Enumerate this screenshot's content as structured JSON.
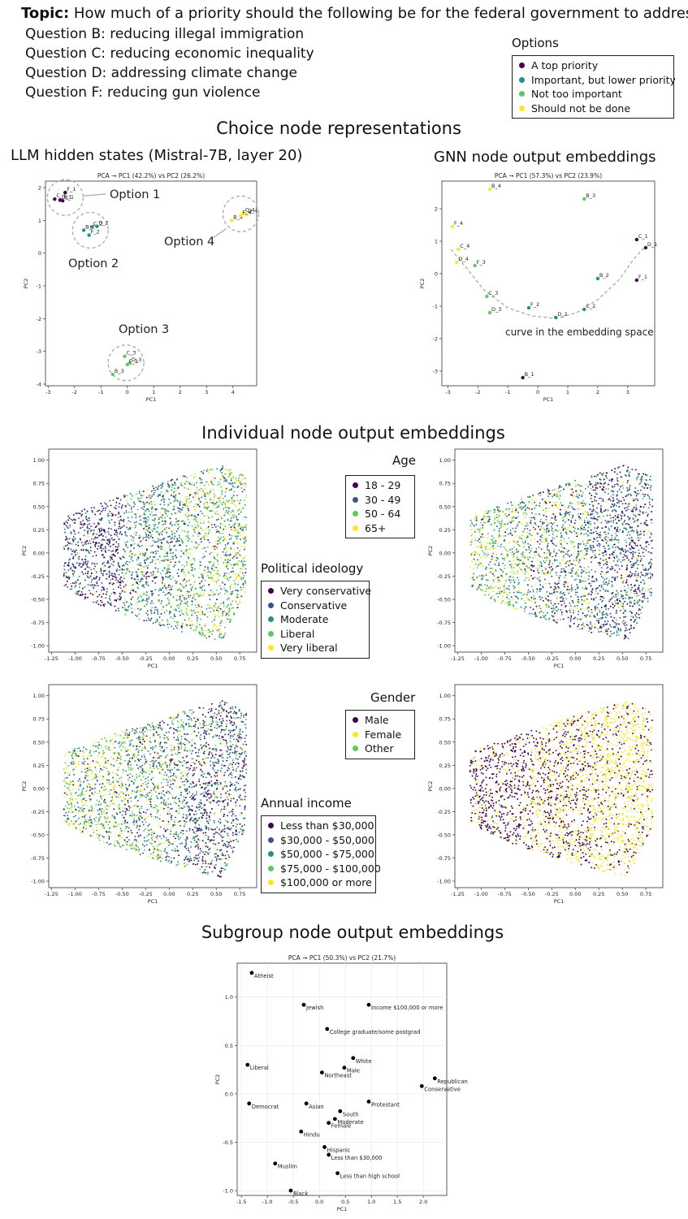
{
  "header": {
    "topic_label": "Topic:",
    "topic_text": "How much of a priority should the following be for the federal government to address…",
    "questions": [
      "Question B: reducing illegal immigration",
      "Question C: reducing economic inequality",
      "Question D: addressing climate change",
      "Question F: reducing gun violence"
    ]
  },
  "options_legend": {
    "title": "Options",
    "items": [
      {
        "label": "A top priority",
        "color": "#440154"
      },
      {
        "label": "Important, but lower priority",
        "color": "#21918c"
      },
      {
        "label": "Not too important",
        "color": "#5ec962"
      },
      {
        "label": "Should not be done",
        "color": "#fde725"
      }
    ]
  },
  "sections": {
    "choice": "Choice node representations",
    "individual": "Individual node output embeddings",
    "subgroup": "Subgroup node output embeddings"
  },
  "panel_titles": {
    "llm": "LLM hidden states (Mistral-7B, layer 20)",
    "gnn": "GNN node output embeddings"
  },
  "annotations": {
    "option1": "Option 1",
    "option2": "Option 2",
    "option3": "Option 3",
    "option4": "Option 4",
    "curve": "curve in the embedding space"
  },
  "legends": {
    "age": {
      "title": "Age",
      "items": [
        {
          "label": "18 - 29",
          "color": "#440154"
        },
        {
          "label": "30 - 49",
          "color": "#3b528b"
        },
        {
          "label": "50 - 64",
          "color": "#5ec962"
        },
        {
          "label": "65+",
          "color": "#fde725"
        }
      ]
    },
    "ideology": {
      "title": "Political ideology",
      "items": [
        {
          "label": "Very conservative",
          "color": "#440154"
        },
        {
          "label": "Conservative",
          "color": "#3b528b"
        },
        {
          "label": "Moderate",
          "color": "#21918c"
        },
        {
          "label": "Liberal",
          "color": "#5ec962"
        },
        {
          "label": "Very liberal",
          "color": "#fde725"
        }
      ]
    },
    "gender": {
      "title": "Gender",
      "items": [
        {
          "label": "Male",
          "color": "#440154"
        },
        {
          "label": "Female",
          "color": "#fde725"
        },
        {
          "label": "Other",
          "color": "#5ec962"
        }
      ]
    },
    "income": {
      "title": "Annual income",
      "items": [
        {
          "label": "Less than $30,000",
          "color": "#440154"
        },
        {
          "label": "$30,000 - $50,000",
          "color": "#3b528b"
        },
        {
          "label": "$50,000 - $75,000",
          "color": "#21918c"
        },
        {
          "label": "$75,000 - $100,000",
          "color": "#5ec962"
        },
        {
          "label": "$100,000 or more",
          "color": "#fde725"
        }
      ]
    }
  },
  "chart_data": [
    {
      "id": "llm",
      "type": "scatter",
      "title": "PCA → PC1 (42.2%) vs PC2 (26.2%)",
      "xlabel": "PC1",
      "ylabel": "PC2",
      "xlim": [
        -3.1,
        4.9
      ],
      "ylim": [
        -4.05,
        2.2
      ],
      "xticks": [
        -3,
        -2,
        -1,
        0,
        1,
        2,
        3,
        4
      ],
      "yticks": [
        -4,
        -3,
        -2,
        -1,
        0,
        1,
        2
      ],
      "points": [
        {
          "label": "F_1",
          "x": -2.35,
          "y": 1.85,
          "c": "#440154"
        },
        {
          "label": "C_1",
          "x": -2.75,
          "y": 1.65,
          "c": "#440154"
        },
        {
          "label": "D_1",
          "x": -2.55,
          "y": 1.62,
          "c": "#440154"
        },
        {
          "label": "B_1",
          "x": -2.45,
          "y": 1.6,
          "c": "#440154"
        },
        {
          "label": "B_2",
          "x": -1.65,
          "y": 0.7,
          "c": "#21918c"
        },
        {
          "label": "C_2",
          "x": -1.35,
          "y": 0.8,
          "c": "#21918c"
        },
        {
          "label": "D_2",
          "x": -1.15,
          "y": 0.82,
          "c": "#21918c"
        },
        {
          "label": "F_2",
          "x": -1.45,
          "y": 0.55,
          "c": "#21918c"
        },
        {
          "label": "B_4",
          "x": 3.95,
          "y": 1.0,
          "c": "#fde725"
        },
        {
          "label": "C_4",
          "x": 4.4,
          "y": 1.22,
          "c": "#fde725"
        },
        {
          "label": "D_4",
          "x": 4.5,
          "y": 1.2,
          "c": "#fde725"
        },
        {
          "label": "F_4",
          "x": 4.3,
          "y": 1.15,
          "c": "#fde725"
        },
        {
          "label": "C_3",
          "x": -0.1,
          "y": -3.15,
          "c": "#5ec962"
        },
        {
          "label": "D_3",
          "x": 0.1,
          "y": -3.35,
          "c": "#5ec962"
        },
        {
          "label": "F_3",
          "x": 0.0,
          "y": -3.4,
          "c": "#5ec962"
        },
        {
          "label": "B_3",
          "x": -0.55,
          "y": -3.7,
          "c": "#5ec962"
        }
      ]
    },
    {
      "id": "gnn",
      "type": "scatter",
      "title": "PCA → PC1 (57.3%) vs PC2 (23.9%)",
      "xlabel": "PC1",
      "ylabel": "PC2",
      "xlim": [
        -3.2,
        3.9
      ],
      "ylim": [
        -3.45,
        2.85
      ],
      "xticks": [
        -3,
        -2,
        -1,
        0,
        1,
        2,
        3
      ],
      "yticks": [
        -3,
        -2,
        -1,
        0,
        1,
        2
      ],
      "points": [
        {
          "label": "B_4",
          "x": -1.6,
          "y": 2.6,
          "c": "#fde725"
        },
        {
          "label": "B_3",
          "x": 1.55,
          "y": 2.3,
          "c": "#5ec962"
        },
        {
          "label": "F_4",
          "x": -2.85,
          "y": 1.45,
          "c": "#fde725"
        },
        {
          "label": "C_4",
          "x": -2.65,
          "y": 0.75,
          "c": "#fde725"
        },
        {
          "label": "D_4",
          "x": -2.7,
          "y": 0.35,
          "c": "#fde725"
        },
        {
          "label": "F_3",
          "x": -2.1,
          "y": 0.25,
          "c": "#5ec962"
        },
        {
          "label": "C_1",
          "x": 3.3,
          "y": 1.05,
          "c": "#440154"
        },
        {
          "label": "D_1",
          "x": 3.6,
          "y": 0.8,
          "c": "#440154"
        },
        {
          "label": "B_2",
          "x": 2.0,
          "y": -0.15,
          "c": "#21918c"
        },
        {
          "label": "F_1",
          "x": 3.3,
          "y": -0.2,
          "c": "#440154"
        },
        {
          "label": "C_3",
          "x": -1.7,
          "y": -0.7,
          "c": "#5ec962"
        },
        {
          "label": "F_2",
          "x": -0.3,
          "y": -1.05,
          "c": "#21918c"
        },
        {
          "label": "C_2",
          "x": 1.55,
          "y": -1.1,
          "c": "#21918c"
        },
        {
          "label": "D_3",
          "x": -1.6,
          "y": -1.2,
          "c": "#5ec962"
        },
        {
          "label": "D_2",
          "x": 0.6,
          "y": -1.35,
          "c": "#21918c"
        },
        {
          "label": "B_1",
          "x": -0.5,
          "y": -3.2,
          "c": "#440154"
        }
      ]
    },
    {
      "id": "indiv_age",
      "type": "scatter",
      "xlabel": "PC1",
      "ylabel": "PC2",
      "xlim": [
        -1.28,
        0.93
      ],
      "ylim": [
        -1.07,
        1.12
      ],
      "xticks": [
        -1.25,
        -1.0,
        -0.75,
        -0.5,
        -0.25,
        0.0,
        0.25,
        0.5,
        0.75
      ],
      "xticklabels": [
        "-1.25",
        "-1.00",
        "-0.75",
        "-0.50",
        "-0.25",
        "0.00",
        "0.25",
        "0.50",
        "0.75"
      ],
      "yticks": [
        -1.0,
        -0.75,
        -0.5,
        -0.25,
        0.0,
        0.25,
        0.5,
        0.75,
        1.0
      ],
      "yticklabels": [
        "-1.00",
        "-0.75",
        "-0.50",
        "-0.25",
        "0.00",
        "0.25",
        "0.50",
        "0.75",
        "1.00"
      ],
      "color_by": "age / political ideology",
      "palette": [
        "#440154",
        "#3b528b",
        "#21918c",
        "#5ec962",
        "#fde725"
      ],
      "weights": [
        [
          4,
          3,
          1,
          0.4,
          0.1
        ],
        [
          1,
          2,
          3,
          2,
          1
        ],
        [
          0.3,
          1,
          2,
          3,
          2.5
        ]
      ]
    },
    {
      "id": "indiv_ideology",
      "type": "scatter",
      "xlabel": "PC1",
      "ylabel": "PC2",
      "xlim": [
        -1.28,
        0.93
      ],
      "ylim": [
        -1.07,
        1.12
      ],
      "xticks": [
        -1.25,
        -1.0,
        -0.75,
        -0.5,
        -0.25,
        0.0,
        0.25,
        0.5,
        0.75
      ],
      "xticklabels": [
        "-1.25",
        "-1.00",
        "-0.75",
        "-0.50",
        "-0.25",
        "0.00",
        "0.25",
        "0.50",
        "0.75"
      ],
      "yticks": [
        -1.0,
        -0.75,
        -0.5,
        -0.25,
        0.0,
        0.25,
        0.5,
        0.75,
        1.0
      ],
      "yticklabels": [
        "-1.00",
        "-0.75",
        "-0.50",
        "-0.25",
        "0.00",
        "0.25",
        "0.50",
        "0.75",
        "1.00"
      ],
      "color_by": "political ideology",
      "palette": [
        "#440154",
        "#3b528b",
        "#21918c",
        "#5ec962",
        "#fde725"
      ],
      "weights": [
        [
          0.5,
          1,
          2,
          3,
          3
        ],
        [
          2,
          2,
          2,
          2,
          2
        ],
        [
          3,
          3,
          2,
          1,
          0.5
        ]
      ]
    },
    {
      "id": "indiv_income",
      "type": "scatter",
      "xlabel": "PC1",
      "ylabel": "PC2",
      "xlim": [
        -1.28,
        0.93
      ],
      "ylim": [
        -1.07,
        1.12
      ],
      "xticks": [
        -1.25,
        -1.0,
        -0.75,
        -0.5,
        -0.25,
        0.0,
        0.25,
        0.5,
        0.75
      ],
      "xticklabels": [
        "-1.25",
        "-1.00",
        "-0.75",
        "-0.50",
        "-0.25",
        "0.00",
        "0.25",
        "0.50",
        "0.75"
      ],
      "yticks": [
        -1.0,
        -0.75,
        -0.5,
        -0.25,
        0.0,
        0.25,
        0.5,
        0.75,
        1.0
      ],
      "yticklabels": [
        "-1.00",
        "-0.75",
        "-0.50",
        "-0.25",
        "0.00",
        "0.25",
        "0.50",
        "0.75",
        "1.00"
      ],
      "color_by": "annual income",
      "palette": [
        "#440154",
        "#3b528b",
        "#21918c",
        "#5ec962",
        "#fde725"
      ],
      "weights": [
        [
          0.5,
          1,
          1.5,
          2.5,
          3
        ],
        [
          1,
          2,
          2,
          2,
          1.5
        ],
        [
          3,
          3,
          2,
          1,
          0.5
        ]
      ]
    },
    {
      "id": "indiv_gender",
      "type": "scatter",
      "xlabel": "PC1",
      "ylabel": "PC2",
      "xlim": [
        -1.28,
        0.93
      ],
      "ylim": [
        -1.07,
        1.12
      ],
      "xticks": [
        -1.25,
        -1.0,
        -0.75,
        -0.5,
        -0.25,
        0.0,
        0.25,
        0.5,
        0.75
      ],
      "xticklabels": [
        "-1.25",
        "-1.00",
        "-0.75",
        "-0.50",
        "-0.25",
        "0.00",
        "0.25",
        "0.50",
        "0.75"
      ],
      "yticks": [
        -1.0,
        -0.75,
        -0.5,
        -0.25,
        0.0,
        0.25,
        0.5,
        0.75,
        1.0
      ],
      "yticklabels": [
        "-1.00",
        "-0.75",
        "-0.50",
        "-0.25",
        "0.00",
        "0.25",
        "0.50",
        "0.75",
        "1.00"
      ],
      "color_by": "gender",
      "palette": [
        "#440154",
        "#fde725",
        "#5ec962"
      ],
      "weights": [
        [
          3,
          1,
          0.05
        ],
        [
          1.5,
          1.5,
          0.05
        ],
        [
          1,
          3,
          0.05
        ]
      ]
    },
    {
      "id": "subgroup",
      "type": "scatter",
      "title": "PCA → PC1 (50.3%) vs PC2 (21.7%)",
      "xlabel": "PC1",
      "ylabel": "PC2",
      "xlim": [
        -1.58,
        2.45
      ],
      "ylim": [
        -1.05,
        1.35
      ],
      "xticks": [
        -1.5,
        -1.0,
        -0.5,
        0.0,
        0.5,
        1.0,
        1.5,
        2.0
      ],
      "xticklabels": [
        "-1.5",
        "-1.0",
        "-0.5",
        "0.0",
        "0.5",
        "1.0",
        "1.5",
        "2.0"
      ],
      "yticks": [
        -1.0,
        -0.5,
        0.0,
        0.5,
        1.0
      ],
      "yticklabels": [
        "-1.0",
        "-0.5",
        "0.0",
        "0.5",
        "1.0"
      ],
      "points": [
        {
          "label": "Atheist",
          "x": -1.3,
          "y": 1.25
        },
        {
          "label": "Jewish",
          "x": -0.3,
          "y": 0.92
        },
        {
          "label": "Income $100,000 or more",
          "x": 0.95,
          "y": 0.92
        },
        {
          "label": "College graduate/some postgrad",
          "x": 0.15,
          "y": 0.67
        },
        {
          "label": "White",
          "x": 0.65,
          "y": 0.37
        },
        {
          "label": "Male",
          "x": 0.48,
          "y": 0.27
        },
        {
          "label": "Northeast",
          "x": 0.05,
          "y": 0.22
        },
        {
          "label": "Liberal",
          "x": -1.38,
          "y": 0.3
        },
        {
          "label": "Republican",
          "x": 2.22,
          "y": 0.16
        },
        {
          "label": "Conservative",
          "x": 1.97,
          "y": 0.08
        },
        {
          "label": "Democrat",
          "x": -1.35,
          "y": -0.1
        },
        {
          "label": "Asian",
          "x": -0.25,
          "y": -0.1
        },
        {
          "label": "Protestant",
          "x": 0.95,
          "y": -0.08
        },
        {
          "label": "South",
          "x": 0.4,
          "y": -0.18
        },
        {
          "label": "Moderate",
          "x": 0.3,
          "y": -0.26
        },
        {
          "label": "Female",
          "x": 0.18,
          "y": -0.3
        },
        {
          "label": "Hindu",
          "x": -0.35,
          "y": -0.39
        },
        {
          "label": "Hispanic",
          "x": 0.1,
          "y": -0.55
        },
        {
          "label": "Less than $30,000",
          "x": 0.18,
          "y": -0.63
        },
        {
          "label": "Muslim",
          "x": -0.85,
          "y": -0.72
        },
        {
          "label": "Less than high school",
          "x": 0.35,
          "y": -0.82
        },
        {
          "label": "Black",
          "x": -0.55,
          "y": -1.0
        }
      ]
    }
  ]
}
